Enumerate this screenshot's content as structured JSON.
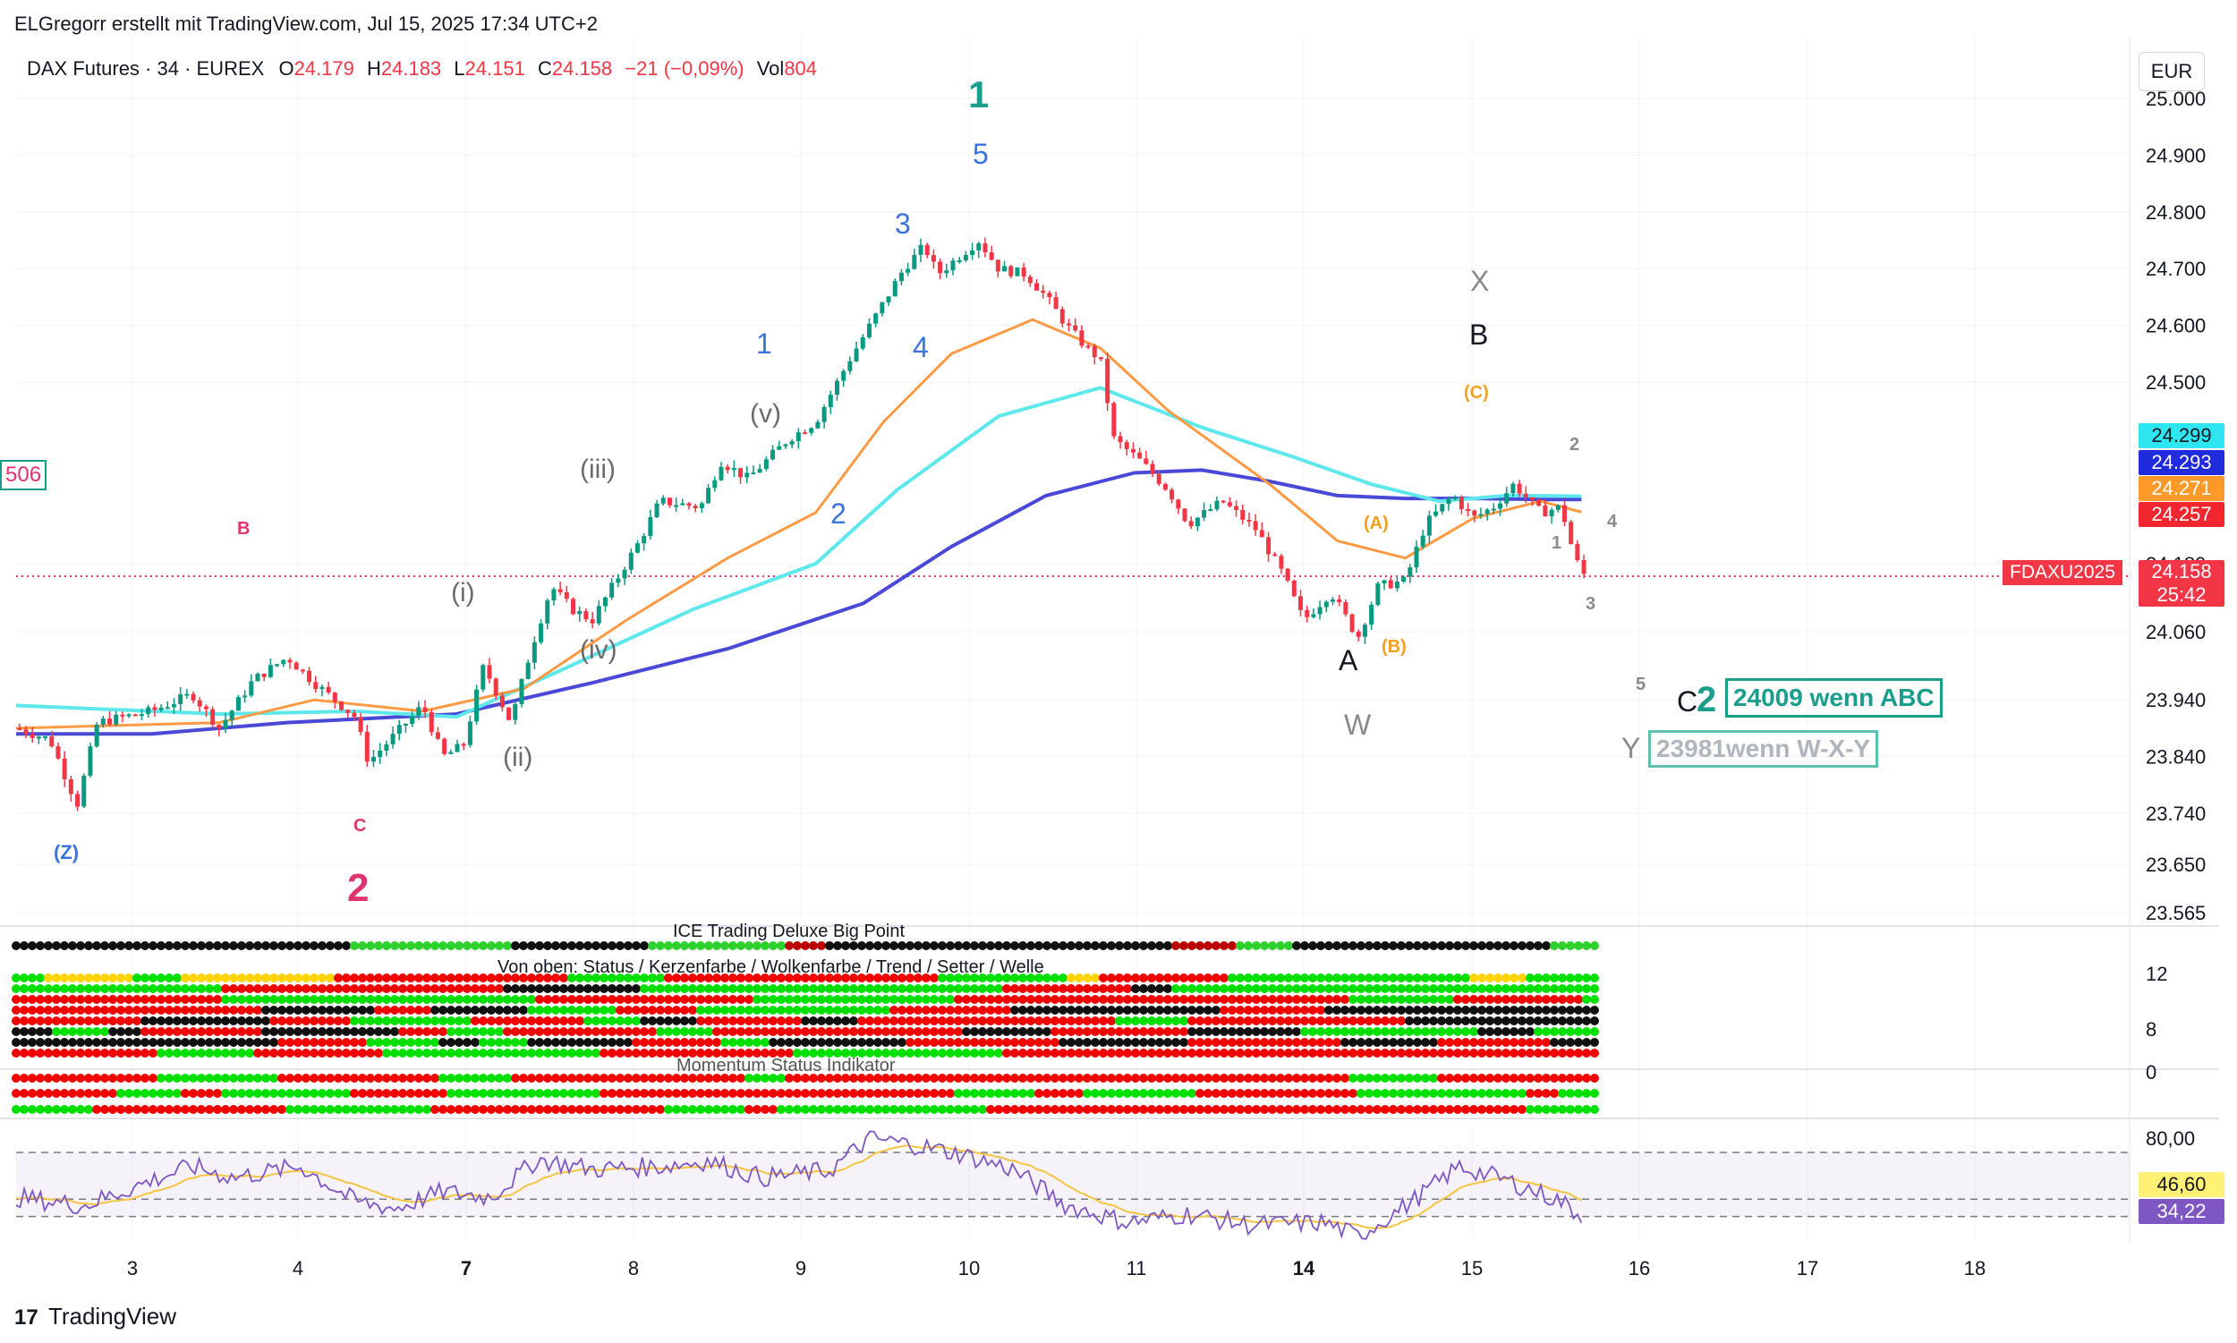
{
  "credit": "ELGregorr erstellt mit TradingView.com, Jul 15, 2025 17:34 UTC+2",
  "header": {
    "symbol": "DAX Futures · 34 · EUREX",
    "o_label": "O",
    "o": "24.179",
    "h_label": "H",
    "h": "24.183",
    "l_label": "L",
    "l": "24.151",
    "c_label": "C",
    "c": "24.158",
    "change": "−21 (−0,09%)",
    "vol_label": "Vol",
    "vol": "804"
  },
  "currency": "EUR",
  "left_badge": "506",
  "price_axis": [
    "25.000",
    "24.900",
    "24.800",
    "24.700",
    "24.600",
    "24.500",
    "24.299",
    "24.293",
    "24.271",
    "24.257",
    "24.180",
    "24.158",
    "24.060",
    "23.940",
    "23.840",
    "23.740",
    "23.650",
    "23.565"
  ],
  "price_tags": {
    "cyan": "24.299",
    "blue": "24.293",
    "orange": "24.271",
    "red": "24.257",
    "last": "24.158",
    "countdown": "25:42",
    "symbol_tag": "FDAXU2025"
  },
  "indicator_axis": [
    "12",
    "8",
    "0"
  ],
  "rsi_axis": [
    "80,00",
    "46,60",
    "34,22"
  ],
  "time_axis": [
    "3",
    "4",
    "7",
    "8",
    "9",
    "10",
    "11",
    "14",
    "15",
    "16",
    "17",
    "18"
  ],
  "panels": {
    "ice": "ICE Trading Deluxe Big Point",
    "von_oben": "Von oben: Status / Kerzenfarbe / Wolkenfarbe / Trend / Setter / Welle",
    "momentum": "Momentum Status Indikator"
  },
  "wave_labels": {
    "big1": "1",
    "big2": "2",
    "big2b": "2",
    "w5": "5",
    "w3": "3",
    "w1": "1",
    "w4": "4",
    "w2": "2",
    "z": "(Z)",
    "b_small": "B",
    "c_small": "C",
    "i": "(i)",
    "ii": "(ii)",
    "iii": "(iii)",
    "iv": "(iv)",
    "v": "(v)",
    "A": "A",
    "B": "B",
    "C": "C",
    "X": "X",
    "W": "W",
    "Y": "Y",
    "pA": "(A)",
    "pB": "(B)",
    "pC": "(C)",
    "s1": "1",
    "s2": "2",
    "s3": "3",
    "s4": "4",
    "s5": "5"
  },
  "targets": {
    "abc": "24009 wenn ABC",
    "wxy": "23981wenn W-X-Y"
  },
  "brand": "TradingView",
  "colors": {
    "up": "#089981",
    "down": "#f23645",
    "ema_red": "#f04a50",
    "ema_orange": "#ff9a44",
    "ema_cyan": "#5ee8ec",
    "ema_blue": "#4a48d6",
    "teal_label": "#1a9e8b",
    "blue_label": "#3a74dc",
    "pink_label": "#e0336f",
    "gray_label": "#6b6b6b",
    "orange_label": "#f2a01e",
    "rsi_line": "#7e57c2",
    "rsi_ma": "#f5c542"
  },
  "chart_data": {
    "type": "candlestick",
    "title": "DAX Futures · 34 · EUREX",
    "ylim": [
      23565,
      25000
    ],
    "x_ticks": [
      "3",
      "4",
      "7",
      "8",
      "9",
      "10",
      "11",
      "14",
      "15",
      "16",
      "17",
      "18"
    ],
    "price_path": [
      [
        0,
        23890
      ],
      [
        0.5,
        23870
      ],
      [
        0.9,
        23755
      ],
      [
        1.2,
        23900
      ],
      [
        2.0,
        23920
      ],
      [
        2.6,
        23950
      ],
      [
        3.0,
        23890
      ],
      [
        3.5,
        23975
      ],
      [
        4.0,
        24015
      ],
      [
        4.4,
        23970
      ],
      [
        5.0,
        23910
      ],
      [
        5.2,
        23830
      ],
      [
        5.6,
        23880
      ],
      [
        6.0,
        23930
      ],
      [
        6.3,
        23840
      ],
      [
        6.6,
        23860
      ],
      [
        6.9,
        24000
      ],
      [
        7.3,
        23900
      ],
      [
        7.6,
        24030
      ],
      [
        7.9,
        24140
      ],
      [
        8.2,
        24100
      ],
      [
        8.5,
        24080
      ],
      [
        8.9,
        24160
      ],
      [
        9.2,
        24220
      ],
      [
        9.5,
        24290
      ],
      [
        10.1,
        24280
      ],
      [
        10.4,
        24360
      ],
      [
        10.8,
        24330
      ],
      [
        11.4,
        24400
      ],
      [
        11.8,
        24430
      ],
      [
        12.3,
        24540
      ],
      [
        12.8,
        24640
      ],
      [
        13.1,
        24700
      ],
      [
        13.4,
        24740
      ],
      [
        13.6,
        24690
      ],
      [
        13.9,
        24720
      ],
      [
        14.2,
        24750
      ],
      [
        14.5,
        24700
      ],
      [
        14.9,
        24690
      ],
      [
        15.2,
        24650
      ],
      [
        15.5,
        24600
      ],
      [
        15.8,
        24560
      ],
      [
        16.0,
        24540
      ],
      [
        16.2,
        24400
      ],
      [
        16.6,
        24360
      ],
      [
        17.0,
        24310
      ],
      [
        17.3,
        24250
      ],
      [
        17.8,
        24290
      ],
      [
        18.3,
        24240
      ],
      [
        18.7,
        24160
      ],
      [
        19.0,
        24080
      ],
      [
        19.4,
        24130
      ],
      [
        19.8,
        24050
      ],
      [
        20.1,
        24140
      ],
      [
        20.5,
        24150
      ],
      [
        20.8,
        24250
      ],
      [
        21.2,
        24300
      ],
      [
        21.5,
        24260
      ],
      [
        21.8,
        24280
      ],
      [
        22.1,
        24320
      ],
      [
        22.5,
        24270
      ],
      [
        22.8,
        24280
      ],
      [
        23.0,
        24190
      ],
      [
        23.15,
        24158
      ]
    ],
    "ema_fast_red": [
      [
        0,
        23900
      ],
      [
        3,
        23915
      ],
      [
        4.4,
        23960
      ],
      [
        6,
        23910
      ],
      [
        7,
        23920
      ],
      [
        8.5,
        24080
      ],
      [
        10,
        24170
      ],
      [
        11.5,
        24260
      ],
      [
        12.5,
        24480
      ],
      [
        13.5,
        24650
      ],
      [
        14.5,
        24690
      ],
      [
        15.5,
        24630
      ],
      [
        16.5,
        24470
      ],
      [
        17.5,
        24340
      ],
      [
        18.5,
        24230
      ],
      [
        19.5,
        24090
      ],
      [
        20.5,
        24140
      ],
      [
        21.5,
        24270
      ],
      [
        22.5,
        24280
      ],
      [
        23.1,
        24257
      ]
    ],
    "ema_orange": [
      [
        0,
        23890
      ],
      [
        3,
        23900
      ],
      [
        4.4,
        23940
      ],
      [
        6,
        23920
      ],
      [
        7.5,
        23960
      ],
      [
        9,
        24080
      ],
      [
        10.5,
        24190
      ],
      [
        11.8,
        24270
      ],
      [
        12.8,
        24430
      ],
      [
        13.8,
        24550
      ],
      [
        15,
        24610
      ],
      [
        16,
        24560
      ],
      [
        17,
        24450
      ],
      [
        18.5,
        24320
      ],
      [
        19.5,
        24220
      ],
      [
        20.5,
        24190
      ],
      [
        21.5,
        24260
      ],
      [
        22.5,
        24290
      ],
      [
        23.1,
        24271
      ]
    ],
    "ema_cyan": [
      [
        0,
        23930
      ],
      [
        3,
        23915
      ],
      [
        5,
        23920
      ],
      [
        6.5,
        23910
      ],
      [
        8,
        23990
      ],
      [
        10,
        24100
      ],
      [
        11.8,
        24180
      ],
      [
        13,
        24310
      ],
      [
        14.5,
        24440
      ],
      [
        16,
        24490
      ],
      [
        17.5,
        24420
      ],
      [
        18.8,
        24370
      ],
      [
        20,
        24320
      ],
      [
        21,
        24290
      ],
      [
        22,
        24300
      ],
      [
        23.1,
        24299
      ]
    ],
    "ema_blue": [
      [
        0,
        23880
      ],
      [
        2,
        23880
      ],
      [
        4,
        23900
      ],
      [
        6.5,
        23915
      ],
      [
        8.5,
        23970
      ],
      [
        10.5,
        24030
      ],
      [
        12.5,
        24110
      ],
      [
        13.8,
        24210
      ],
      [
        15.2,
        24300
      ],
      [
        16.5,
        24340
      ],
      [
        17.5,
        24345
      ],
      [
        18.5,
        24325
      ],
      [
        19.5,
        24300
      ],
      [
        20.5,
        24295
      ],
      [
        21.5,
        24295
      ],
      [
        22.5,
        24293
      ],
      [
        23.1,
        24293
      ]
    ],
    "last_price": 24158,
    "targets": [
      24009,
      23981
    ],
    "rsi": {
      "levels": [
        80,
        46.6,
        34.22
      ],
      "last": 34.22,
      "ma_last": 46.6,
      "path": [
        [
          0,
          48
        ],
        [
          1,
          42
        ],
        [
          2,
          60
        ],
        [
          2.6,
          70
        ],
        [
          3.2,
          62
        ],
        [
          4.2,
          70
        ],
        [
          5,
          45
        ],
        [
          5.6,
          40
        ],
        [
          6.3,
          52
        ],
        [
          7,
          48
        ],
        [
          7.7,
          75
        ],
        [
          8.5,
          68
        ],
        [
          9.5,
          70
        ],
        [
          10.2,
          74
        ],
        [
          11,
          62
        ],
        [
          12,
          67
        ],
        [
          12.6,
          90
        ],
        [
          13.3,
          85
        ],
        [
          14,
          78
        ],
        [
          14.7,
          68
        ],
        [
          15.5,
          42
        ],
        [
          16.4,
          30
        ],
        [
          17.3,
          36
        ],
        [
          18.2,
          28
        ],
        [
          19.3,
          30
        ],
        [
          19.8,
          20
        ],
        [
          20.6,
          45
        ],
        [
          21.3,
          70
        ],
        [
          22,
          60
        ],
        [
          22.8,
          45
        ],
        [
          23.1,
          34.22
        ]
      ]
    }
  }
}
